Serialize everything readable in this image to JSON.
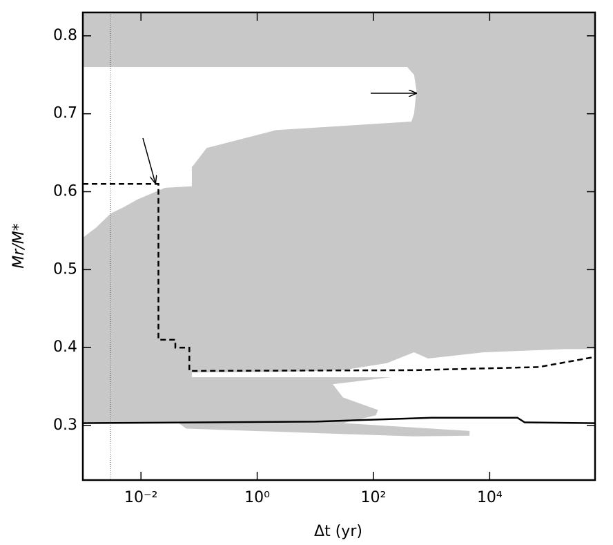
{
  "chart_data": {
    "type": "region",
    "xlabel": "Δt (yr)",
    "ylabel": "Mr/M*",
    "xlog": true,
    "xlim": [
      0.001,
      650000
    ],
    "ylim": [
      0.23,
      0.83
    ],
    "xticks": [
      {
        "value": 0.01,
        "label": "10⁻²"
      },
      {
        "value": 1,
        "label": "10⁰"
      },
      {
        "value": 100,
        "label": "10²"
      },
      {
        "value": 10000,
        "label": "10⁴"
      }
    ],
    "yticks": [
      0.3,
      0.4,
      0.5,
      0.6,
      0.7,
      0.8
    ],
    "background": "#c8c8c8",
    "regions": [
      {
        "color": "#ffffff",
        "x": [
          0.001,
          380,
          500,
          550,
          500,
          450,
          2.1,
          0.135,
          0.08,
          0.075,
          0.075,
          0.026,
          0.0087,
          0.005,
          0.003,
          0.0017,
          0.001
        ],
        "y": [
          0.76,
          0.76,
          0.75,
          0.73,
          0.7,
          0.69,
          0.679,
          0.656,
          0.634,
          0.632,
          0.607,
          0.605,
          0.59,
          0.58,
          0.572,
          0.554,
          0.541
        ]
      },
      {
        "color": "#ffffff",
        "x": [
          0.075,
          3,
          30,
          170,
          500,
          870,
          8000,
          200000,
          650000,
          650000,
          30,
          110,
          120,
          30,
          20,
          200,
          0.075
        ],
        "y": [
          0.368,
          0.369,
          0.371,
          0.38,
          0.394,
          0.386,
          0.394,
          0.398,
          0.398,
          0.303,
          0.303,
          0.313,
          0.32,
          0.336,
          0.353,
          0.362,
          0.362
        ]
      },
      {
        "color": "#ffffff",
        "x": [
          0.001,
          650000,
          650000,
          0.001
        ],
        "y": [
          0.303,
          0.303,
          0.23,
          0.23
        ]
      },
      {
        "color": "#c8c8c8",
        "x": [
          0.045,
          30,
          4500,
          4500,
          500,
          0.06
        ],
        "y": [
          0.303,
          0.303,
          0.293,
          0.287,
          0.286,
          0.296
        ]
      }
    ],
    "series": [
      {
        "style": "dashed",
        "color": "#000000",
        "x": [
          0.001,
          0.02,
          0.02,
          0.039,
          0.039,
          0.068,
          0.068,
          500,
          70000,
          650000
        ],
        "y": [
          0.61,
          0.61,
          0.41,
          0.41,
          0.4,
          0.4,
          0.37,
          0.371,
          0.375,
          0.388
        ]
      },
      {
        "style": "solid",
        "color": "#000000",
        "x": [
          0.001,
          10,
          1000,
          30000,
          40000,
          650000
        ],
        "y": [
          0.303,
          0.305,
          0.31,
          0.31,
          0.304,
          0.303
        ]
      }
    ],
    "vlines": [
      0.003
    ]
  }
}
